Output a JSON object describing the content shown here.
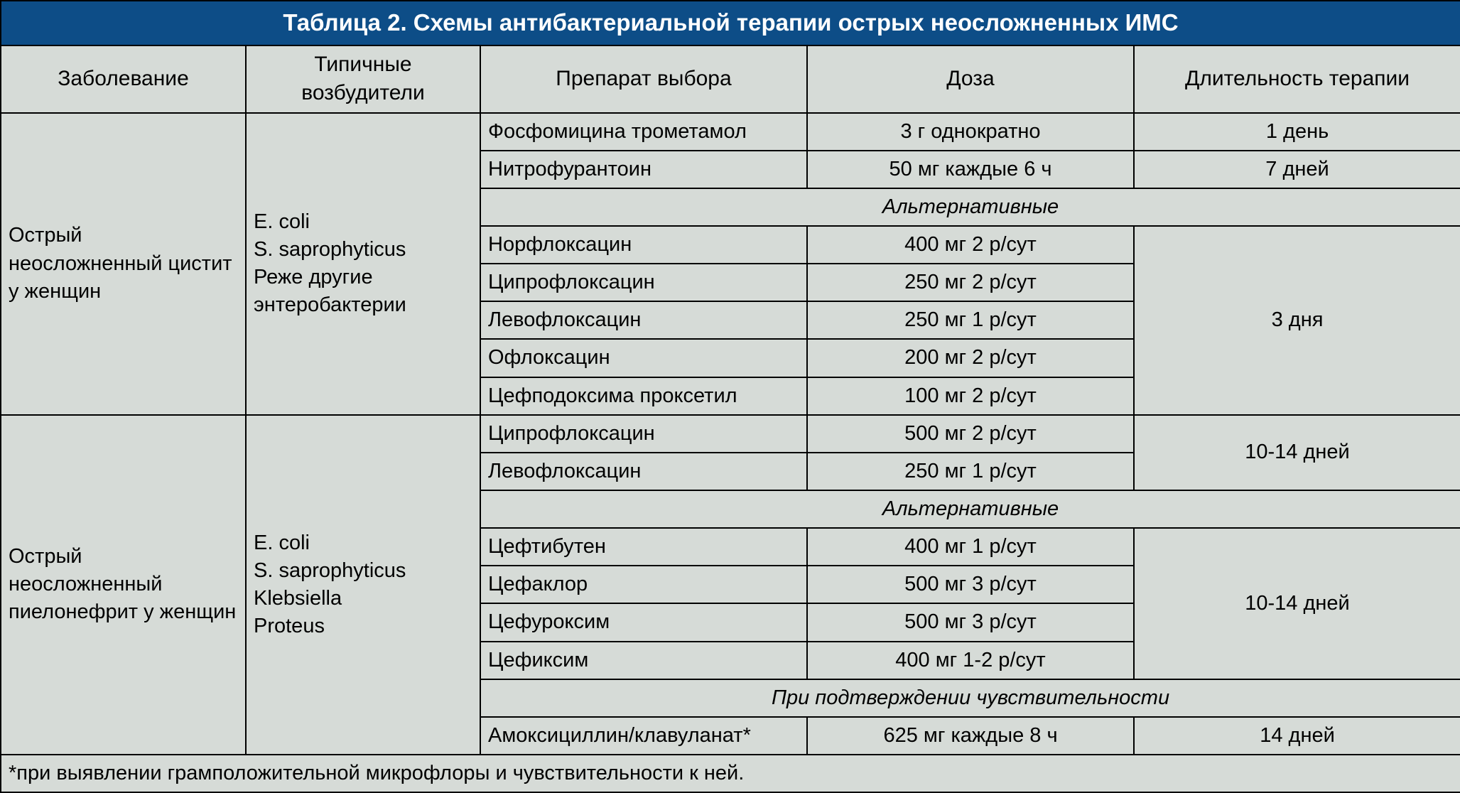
{
  "title": "Таблица 2. Схемы антибактериальной терапии острых неосложненных ИМС",
  "headers": {
    "disease": "Заболевание",
    "pathogens": "Типичные возбудители",
    "drug": "Препарат выбора",
    "dose": "Доза",
    "duration": "Длительность терапии"
  },
  "section1": {
    "disease": "Острый неосложненный цистит у женщин",
    "pathogens": "E. coli\nS. saprophyticus\nРеже другие энтеробактерии",
    "row1": {
      "drug": "Фосфомицина трометамол",
      "dose": "3 г однократно",
      "duration": "1 день"
    },
    "row2": {
      "drug": "Нитрофурантоин",
      "dose": "50 мг каждые 6 ч",
      "duration": "7 дней"
    },
    "alt_header": "Альтернативные",
    "row3": {
      "drug": "Норфлоксацин",
      "dose": "400 мг 2 р/сут"
    },
    "row4": {
      "drug": "Ципрофлоксацин",
      "dose": "250 мг 2 р/сут"
    },
    "row5": {
      "drug": "Левофлоксацин",
      "dose": "250 мг 1 р/сут"
    },
    "row6": {
      "drug": "Офлоксацин",
      "dose": "200 мг 2 р/сут"
    },
    "row7": {
      "drug": "Цефподоксима проксетил",
      "dose": "100 мг 2 р/сут"
    },
    "alt_duration": "3 дня"
  },
  "section2": {
    "disease": "Острый неосложненный пиелонефрит у женщин",
    "pathogens": "E. coli\nS. saprophyticus\nKlebsiella\nProteus",
    "row1": {
      "drug": "Ципрофлоксацин",
      "dose": "500 мг 2 р/сут"
    },
    "row2": {
      "drug": "Левофлоксацин",
      "dose": "250 мг 1 р/сут"
    },
    "top_duration": "10-14 дней",
    "alt_header": "Альтернативные",
    "row3": {
      "drug": "Цефтибутен",
      "dose": "400 мг 1 р/сут"
    },
    "row4": {
      "drug": "Цефаклор",
      "dose": "500 мг 3 р/сут"
    },
    "row5": {
      "drug": "Цефуроксим",
      "dose": "500 мг 3 р/сут"
    },
    "row6": {
      "drug": "Цефиксим",
      "dose": "400 мг 1-2 р/сут"
    },
    "alt_duration": "10-14 дней",
    "sens_header": "При подтверждении чувствительности",
    "row7": {
      "drug": "Амоксициллин/клавуланат*",
      "dose": "625 мг каждые 8 ч",
      "duration": "14 дней"
    }
  },
  "footnote": "*при выявлении грамположительной микрофлоры и чувствительности к ней.",
  "colors": {
    "title_bg": "#0d4d87",
    "title_fg": "#ffffff",
    "cell_bg": "#d6dbd7",
    "border": "#000000"
  }
}
